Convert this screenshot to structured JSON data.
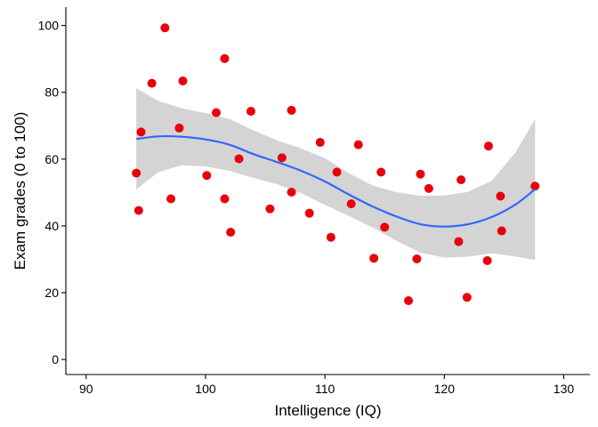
{
  "chart_data": {
    "type": "scatter",
    "title": "",
    "xlabel": "Intelligence (IQ)",
    "ylabel": "Exam grades (0 to 100)",
    "xlim": [
      88.3,
      132.2
    ],
    "ylim": [
      -4.5,
      105.5
    ],
    "x_ticks": [
      90,
      100,
      110,
      120,
      130
    ],
    "y_ticks": [
      0,
      20,
      40,
      60,
      80,
      100
    ],
    "grid": false,
    "legend": "none",
    "colors": {
      "points": "#e8000b",
      "smooth_line": "#3366ff",
      "confidence_band": "#cccccc"
    },
    "points": [
      {
        "x": 94.2,
        "y": 55.8
      },
      {
        "x": 94.4,
        "y": 44.6
      },
      {
        "x": 94.6,
        "y": 68.1
      },
      {
        "x": 95.5,
        "y": 82.7
      },
      {
        "x": 96.6,
        "y": 99.3
      },
      {
        "x": 97.1,
        "y": 48.1
      },
      {
        "x": 97.8,
        "y": 69.3
      },
      {
        "x": 98.1,
        "y": 83.4
      },
      {
        "x": 100.1,
        "y": 55.1
      },
      {
        "x": 100.9,
        "y": 73.9
      },
      {
        "x": 101.6,
        "y": 90.1
      },
      {
        "x": 101.6,
        "y": 48.1
      },
      {
        "x": 102.1,
        "y": 38.1
      },
      {
        "x": 102.8,
        "y": 60.1
      },
      {
        "x": 103.8,
        "y": 74.3
      },
      {
        "x": 105.4,
        "y": 45.1
      },
      {
        "x": 106.4,
        "y": 60.4
      },
      {
        "x": 107.2,
        "y": 74.6
      },
      {
        "x": 107.2,
        "y": 50.1
      },
      {
        "x": 108.7,
        "y": 43.8
      },
      {
        "x": 109.6,
        "y": 65.0
      },
      {
        "x": 110.5,
        "y": 36.6
      },
      {
        "x": 111.0,
        "y": 56.1
      },
      {
        "x": 112.2,
        "y": 46.6
      },
      {
        "x": 112.8,
        "y": 64.3
      },
      {
        "x": 114.1,
        "y": 30.3
      },
      {
        "x": 114.7,
        "y": 56.1
      },
      {
        "x": 115.0,
        "y": 39.6
      },
      {
        "x": 117.0,
        "y": 17.6
      },
      {
        "x": 117.7,
        "y": 30.1
      },
      {
        "x": 118.0,
        "y": 55.5
      },
      {
        "x": 118.7,
        "y": 51.2
      },
      {
        "x": 121.2,
        "y": 35.3
      },
      {
        "x": 121.4,
        "y": 53.8
      },
      {
        "x": 121.9,
        "y": 18.6
      },
      {
        "x": 123.6,
        "y": 29.6
      },
      {
        "x": 123.7,
        "y": 63.9
      },
      {
        "x": 124.7,
        "y": 48.9
      },
      {
        "x": 124.8,
        "y": 38.5
      },
      {
        "x": 127.6,
        "y": 51.9
      }
    ],
    "smooth": {
      "method": "loess",
      "x": [
        94.2,
        96.0,
        98.0,
        100.0,
        102.0,
        104.0,
        106.0,
        108.0,
        110.0,
        112.0,
        114.0,
        116.0,
        118.0,
        120.0,
        122.0,
        124.0,
        126.0,
        127.6
      ],
      "y": [
        66.0,
        66.8,
        66.7,
        65.9,
        64.3,
        61.5,
        59.1,
        56.5,
        53.3,
        49.4,
        45.8,
        42.8,
        40.5,
        39.8,
        40.5,
        42.7,
        46.5,
        51.0
      ],
      "lower": [
        50.9,
        56.0,
        58.2,
        57.8,
        56.5,
        54.4,
        52.5,
        49.8,
        46.3,
        43.0,
        39.5,
        35.5,
        32.0,
        30.5,
        30.8,
        31.8,
        30.8,
        29.8
      ],
      "upper": [
        81.3,
        77.5,
        75.2,
        73.8,
        72.0,
        68.6,
        65.6,
        63.2,
        60.3,
        55.8,
        52.1,
        50.1,
        49.0,
        49.1,
        50.2,
        53.6,
        62.2,
        72.0
      ]
    }
  }
}
